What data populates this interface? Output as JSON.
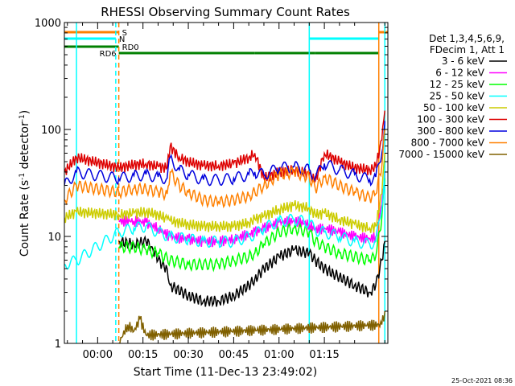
{
  "title": "RHESSI Observing Summary Count Rates",
  "footer_date": "25-Oct-2021 08:36",
  "chart_data": {
    "type": "line",
    "title": "RHESSI Observing Summary Count Rates",
    "xlabel": "Start Time (11-Dec-13 23:49:02)",
    "ylabel": "Count Rate (s⁻¹ detector⁻¹)",
    "ylabel_parts": [
      "Count Rate (s",
      "-1",
      " detector",
      "-1",
      ")"
    ],
    "yscale": "log",
    "ylim": [
      1,
      1000
    ],
    "xlim_minutes": [
      -11,
      96
    ],
    "x_ticks": [
      {
        "label": "00:00",
        "minutes": 0
      },
      {
        "label": "00:15",
        "minutes": 15
      },
      {
        "label": "00:30",
        "minutes": 30
      },
      {
        "label": "00:45",
        "minutes": 45
      },
      {
        "label": "01:00",
        "minutes": 60
      },
      {
        "label": "01:15",
        "minutes": 75
      }
    ],
    "y_ticks": [
      {
        "label": "1",
        "value": 1
      },
      {
        "label": "10",
        "value": 10
      },
      {
        "label": "100",
        "value": 100
      },
      {
        "label": "1000",
        "value": 1000
      }
    ],
    "legend": {
      "position": "right",
      "header": [
        "Det 1,3,4,5,6,9,",
        "FDecim 1, Att 1"
      ],
      "entries": [
        {
          "label": "3 - 6 keV",
          "color": "#000000"
        },
        {
          "label": "6 - 12 keV",
          "color": "#ff00ff"
        },
        {
          "label": "12 - 25 keV",
          "color": "#00ff00"
        },
        {
          "label": "25 - 50 keV",
          "color": "#00ffff"
        },
        {
          "label": "50 - 100 keV",
          "color": "#cccc00"
        },
        {
          "label": "100 - 300 keV",
          "color": "#dd0000"
        },
        {
          "label": "300 - 800 keV",
          "color": "#0000dd"
        },
        {
          "label": "800 - 7000 keV",
          "color": "#ff8000"
        },
        {
          "label": "7000 - 15000 keV",
          "color": "#806000"
        }
      ]
    },
    "flags": [
      {
        "label": "S",
        "color": "#ff8000",
        "segments": [
          [
            -11,
            7
          ],
          [
            93,
            96
          ]
        ]
      },
      {
        "label": "N",
        "color": "#00ffff",
        "segments": [
          [
            -11,
            6
          ],
          [
            70,
            93
          ]
        ]
      },
      {
        "label": "RD0",
        "color": "#008000",
        "segments": [
          [
            -11,
            7
          ]
        ]
      },
      {
        "label": "RD6",
        "color": "#008000",
        "segments": [
          [
            7,
            24
          ],
          [
            24,
            52
          ],
          [
            52,
            72
          ],
          [
            72,
            93
          ]
        ]
      }
    ],
    "vertical_markers": [
      {
        "minutes": -7,
        "color": "#00ffff",
        "style": "solid"
      },
      {
        "minutes": 6,
        "color": "#00ffff",
        "style": "dashed"
      },
      {
        "minutes": 7,
        "color": "#ff8000",
        "style": "dashed"
      },
      {
        "minutes": 70,
        "color": "#00ffff",
        "style": "solid"
      },
      {
        "minutes": 93,
        "color": "#ff8000",
        "style": "solid"
      },
      {
        "minutes": 95,
        "color": "#00ffff",
        "style": "solid"
      }
    ],
    "series": [
      {
        "name": "3 - 6 keV",
        "color": "#000000",
        "x": [
          -11,
          -7,
          7,
          12,
          16,
          18,
          20,
          23,
          24,
          30,
          35,
          40,
          45,
          50,
          52,
          55,
          60,
          65,
          70,
          72,
          75,
          78,
          80,
          85,
          90,
          92,
          94,
          95
        ],
        "y": [
          null,
          null,
          9,
          8.5,
          9,
          8,
          6,
          5,
          3.5,
          2.8,
          2.5,
          2.5,
          2.8,
          3.5,
          4,
          5,
          6.5,
          7.5,
          7,
          6,
          5,
          4.5,
          4.2,
          3.5,
          3,
          3.5,
          6,
          9
        ]
      },
      {
        "name": "6 - 12 keV",
        "color": "#ff00ff",
        "x": [
          -11,
          -7,
          7,
          12,
          16,
          20,
          24,
          30,
          35,
          40,
          45,
          50,
          52,
          55,
          60,
          65,
          70,
          72,
          75,
          80,
          85,
          90,
          92,
          94,
          95
        ],
        "y": [
          null,
          null,
          14,
          14,
          13.5,
          12,
          10,
          9.5,
          9,
          9,
          9.5,
          10.5,
          11,
          12,
          13.5,
          14,
          13,
          11.5,
          12,
          11,
          10,
          9.5,
          10,
          20,
          40
        ]
      },
      {
        "name": "12 - 25 keV",
        "color": "#00ff00",
        "x": [
          -11,
          -7,
          7,
          12,
          16,
          20,
          24,
          30,
          35,
          40,
          45,
          50,
          52,
          55,
          60,
          65,
          70,
          72,
          75,
          80,
          85,
          90,
          92,
          94,
          95
        ],
        "y": [
          null,
          null,
          8,
          8,
          7.5,
          7,
          6,
          5.5,
          5.5,
          5.5,
          6,
          6.5,
          7,
          8.5,
          11,
          12,
          11,
          9,
          8,
          7,
          6.5,
          6,
          6.5,
          15,
          35
        ]
      },
      {
        "name": "25 - 50 keV",
        "color": "#00ffff",
        "x": [
          -11,
          -7,
          7,
          12,
          16,
          20,
          24,
          30,
          35,
          40,
          45,
          50,
          52,
          55,
          60,
          65,
          70,
          72,
          75,
          80,
          85,
          90,
          92,
          94,
          95
        ],
        "y": [
          5.5,
          6,
          11,
          12,
          12.5,
          11,
          10,
          9.5,
          9,
          9,
          9,
          10,
          10.5,
          12,
          14,
          14.5,
          13.5,
          11.5,
          11,
          10,
          9,
          8.5,
          9,
          18,
          45
        ]
      },
      {
        "name": "50 - 100 keV",
        "color": "#cccc00",
        "x": [
          -11,
          -7,
          7,
          12,
          16,
          20,
          23,
          24,
          30,
          35,
          40,
          45,
          50,
          52,
          55,
          60,
          65,
          70,
          72,
          75,
          80,
          85,
          90,
          92,
          94,
          95
        ],
        "y": [
          15,
          17,
          16,
          16.5,
          17,
          16,
          14.5,
          14,
          13,
          12.5,
          12.5,
          12.5,
          13.5,
          14.5,
          15.5,
          18,
          19.5,
          18.5,
          16,
          16.5,
          14.5,
          13,
          12,
          12.5,
          25,
          60
        ]
      },
      {
        "name": "100 - 300 keV",
        "color": "#dd0000",
        "x": [
          -11,
          -7,
          7,
          12,
          16,
          20,
          23,
          24,
          27,
          30,
          35,
          40,
          45,
          50,
          52,
          55,
          60,
          65,
          70,
          72,
          75,
          80,
          85,
          90,
          92,
          94,
          95
        ],
        "y": [
          40,
          55,
          44,
          47,
          48,
          45,
          44,
          70,
          55,
          50,
          46,
          46,
          48,
          55,
          60,
          35,
          40,
          42,
          38,
          33,
          60,
          50,
          44,
          42,
          45,
          80,
          150
        ]
      },
      {
        "name": "300 - 800 keV",
        "color": "#0000dd",
        "x": [
          -11,
          -7,
          7,
          12,
          16,
          20,
          23,
          24,
          27,
          30,
          35,
          40,
          45,
          50,
          52,
          55,
          60,
          65,
          70,
          72,
          75,
          80,
          85,
          90,
          92,
          94,
          95
        ],
        "y": [
          30,
          40,
          35,
          37,
          38,
          36,
          35,
          55,
          42,
          38,
          34,
          34,
          35,
          38,
          40,
          38,
          44,
          45,
          42,
          36,
          48,
          42,
          38,
          34,
          36,
          60,
          120
        ]
      },
      {
        "name": "800 - 7000 keV",
        "color": "#ff8000",
        "x": [
          -11,
          -7,
          7,
          12,
          16,
          20,
          23,
          24,
          27,
          30,
          35,
          40,
          45,
          50,
          52,
          55,
          60,
          65,
          70,
          72,
          75,
          80,
          85,
          90,
          92,
          94,
          95
        ],
        "y": [
          22,
          30,
          26,
          28,
          28,
          26,
          25,
          40,
          30,
          26,
          22,
          21,
          22,
          24,
          26,
          30,
          38,
          40,
          36,
          28,
          36,
          30,
          26,
          23,
          25,
          45,
          100
        ]
      },
      {
        "name": "7000 - 15000 keV",
        "color": "#806000",
        "x": [
          -11,
          -7,
          7,
          10,
          12,
          14,
          16,
          94,
          95
        ],
        "y": [
          null,
          null,
          1,
          1.5,
          1.3,
          1.7,
          1.2,
          1.5,
          2
        ]
      }
    ]
  }
}
